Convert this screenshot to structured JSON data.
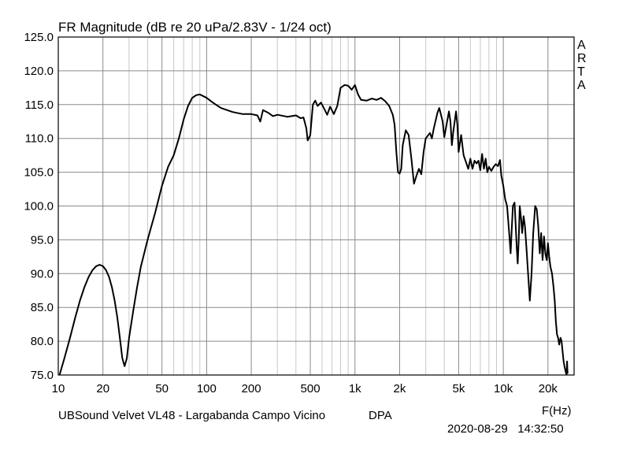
{
  "chart_data": {
    "type": "line",
    "title": "FR Magnitude (dB re 20 uPa/2.83V - 1/24 oct)",
    "brand_letters": [
      "A",
      "R",
      "T",
      "A"
    ],
    "xlabel": "F(Hz)",
    "ylabel": "",
    "x_scale": "log",
    "xlim": [
      10,
      30000
    ],
    "ylim": [
      75,
      125
    ],
    "grid": true,
    "x_ticks": [
      {
        "value": 10,
        "label": "10"
      },
      {
        "value": 20,
        "label": "20"
      },
      {
        "value": 50,
        "label": "50"
      },
      {
        "value": 100,
        "label": "100"
      },
      {
        "value": 200,
        "label": "200"
      },
      {
        "value": 500,
        "label": "500"
      },
      {
        "value": 1000,
        "label": "1k"
      },
      {
        "value": 2000,
        "label": "2k"
      },
      {
        "value": 5000,
        "label": "5k"
      },
      {
        "value": 10000,
        "label": "10k"
      },
      {
        "value": 20000,
        "label": "20k"
      }
    ],
    "y_ticks": [
      {
        "value": 125,
        "label": "125.0"
      },
      {
        "value": 120,
        "label": "120.0"
      },
      {
        "value": 115,
        "label": "115.0"
      },
      {
        "value": 110,
        "label": "110.0"
      },
      {
        "value": 105,
        "label": "105.0"
      },
      {
        "value": 100,
        "label": "100.0"
      },
      {
        "value": 95,
        "label": "95.0"
      },
      {
        "value": 90,
        "label": "90.0"
      },
      {
        "value": 85,
        "label": "85.0"
      },
      {
        "value": 80,
        "label": "80.0"
      },
      {
        "value": 75,
        "label": "75.0"
      }
    ],
    "series": [
      {
        "color": "#000000",
        "points": [
          [
            10.2,
            75.0
          ],
          [
            11,
            77.5
          ],
          [
            12,
            80.5
          ],
          [
            13,
            83.5
          ],
          [
            14,
            86.0
          ],
          [
            15,
            88.0
          ],
          [
            16,
            89.5
          ],
          [
            17,
            90.5
          ],
          [
            18,
            91.1
          ],
          [
            19,
            91.3
          ],
          [
            20,
            91.1
          ],
          [
            21,
            90.5
          ],
          [
            22,
            89.5
          ],
          [
            23,
            88.0
          ],
          [
            24,
            86.0
          ],
          [
            25,
            83.5
          ],
          [
            26,
            80.5
          ],
          [
            27,
            77.5
          ],
          [
            28,
            76.3
          ],
          [
            29,
            77.5
          ],
          [
            30,
            80.5
          ],
          [
            32,
            84.5
          ],
          [
            34,
            88.0
          ],
          [
            36,
            91.0
          ],
          [
            40,
            95.0
          ],
          [
            45,
            99.0
          ],
          [
            50,
            103.0
          ],
          [
            55,
            105.8
          ],
          [
            60,
            107.5
          ],
          [
            65,
            110.0
          ],
          [
            70,
            112.8
          ],
          [
            75,
            114.8
          ],
          [
            80,
            116.0
          ],
          [
            85,
            116.4
          ],
          [
            90,
            116.5
          ],
          [
            100,
            116.0
          ],
          [
            110,
            115.3
          ],
          [
            125,
            114.5
          ],
          [
            150,
            113.9
          ],
          [
            175,
            113.6
          ],
          [
            200,
            113.6
          ],
          [
            220,
            113.4
          ],
          [
            230,
            112.5
          ],
          [
            240,
            114.2
          ],
          [
            260,
            113.8
          ],
          [
            280,
            113.3
          ],
          [
            300,
            113.5
          ],
          [
            350,
            113.2
          ],
          [
            400,
            113.4
          ],
          [
            430,
            113.0
          ],
          [
            450,
            113.1
          ],
          [
            470,
            111.5
          ],
          [
            480,
            109.7
          ],
          [
            500,
            110.5
          ],
          [
            520,
            115.0
          ],
          [
            540,
            115.6
          ],
          [
            560,
            114.8
          ],
          [
            590,
            115.3
          ],
          [
            620,
            114.4
          ],
          [
            650,
            113.5
          ],
          [
            680,
            114.7
          ],
          [
            720,
            113.6
          ],
          [
            760,
            114.8
          ],
          [
            800,
            117.5
          ],
          [
            850,
            117.9
          ],
          [
            900,
            117.8
          ],
          [
            950,
            117.2
          ],
          [
            1000,
            117.9
          ],
          [
            1050,
            116.5
          ],
          [
            1100,
            115.7
          ],
          [
            1200,
            115.6
          ],
          [
            1300,
            115.9
          ],
          [
            1400,
            115.7
          ],
          [
            1500,
            116.0
          ],
          [
            1600,
            115.5
          ],
          [
            1700,
            114.8
          ],
          [
            1800,
            113.5
          ],
          [
            1850,
            112.0
          ],
          [
            1900,
            108.0
          ],
          [
            1950,
            105.0
          ],
          [
            2000,
            104.8
          ],
          [
            2050,
            105.5
          ],
          [
            2100,
            109.0
          ],
          [
            2200,
            111.2
          ],
          [
            2300,
            110.5
          ],
          [
            2400,
            107.0
          ],
          [
            2500,
            103.3
          ],
          [
            2600,
            104.5
          ],
          [
            2700,
            105.5
          ],
          [
            2800,
            104.7
          ],
          [
            2900,
            108.0
          ],
          [
            3000,
            110.0
          ],
          [
            3200,
            110.8
          ],
          [
            3300,
            110.0
          ],
          [
            3400,
            111.5
          ],
          [
            3600,
            113.8
          ],
          [
            3700,
            114.5
          ],
          [
            3800,
            113.5
          ],
          [
            3900,
            112.5
          ],
          [
            4000,
            110.2
          ],
          [
            4100,
            111.5
          ],
          [
            4300,
            114.0
          ],
          [
            4400,
            112.5
          ],
          [
            4500,
            109.0
          ],
          [
            4600,
            111.0
          ],
          [
            4800,
            114.0
          ],
          [
            4900,
            112.0
          ],
          [
            5000,
            108.0
          ],
          [
            5200,
            110.5
          ],
          [
            5400,
            107.5
          ],
          [
            5600,
            106.5
          ],
          [
            5800,
            105.5
          ],
          [
            6000,
            107.0
          ],
          [
            6200,
            105.5
          ],
          [
            6400,
            106.7
          ],
          [
            6600,
            106.3
          ],
          [
            6800,
            106.7
          ],
          [
            7000,
            105.3
          ],
          [
            7200,
            107.7
          ],
          [
            7400,
            105.5
          ],
          [
            7600,
            107.0
          ],
          [
            7800,
            105.0
          ],
          [
            8000,
            105.8
          ],
          [
            8300,
            105.2
          ],
          [
            8600,
            105.8
          ],
          [
            8900,
            106.2
          ],
          [
            9200,
            105.9
          ],
          [
            9500,
            106.8
          ],
          [
            9700,
            104.5
          ],
          [
            10000,
            103.0
          ],
          [
            10300,
            101.0
          ],
          [
            10600,
            100.0
          ],
          [
            11000,
            95.5
          ],
          [
            11200,
            93.0
          ],
          [
            11400,
            96.5
          ],
          [
            11600,
            100.0
          ],
          [
            11900,
            100.5
          ],
          [
            12100,
            97.5
          ],
          [
            12300,
            94.0
          ],
          [
            12500,
            91.5
          ],
          [
            12700,
            95.0
          ],
          [
            12900,
            100.0
          ],
          [
            13200,
            98.0
          ],
          [
            13400,
            96.0
          ],
          [
            13700,
            98.5
          ],
          [
            14000,
            97.0
          ],
          [
            14300,
            94.0
          ],
          [
            14700,
            90.0
          ],
          [
            15100,
            86.0
          ],
          [
            15500,
            90.0
          ],
          [
            15900,
            96.0
          ],
          [
            16400,
            100.0
          ],
          [
            16800,
            99.5
          ],
          [
            17200,
            97.0
          ],
          [
            17600,
            93.0
          ],
          [
            18000,
            96.0
          ],
          [
            18400,
            92.0
          ],
          [
            18800,
            95.5
          ],
          [
            19200,
            93.0
          ],
          [
            19600,
            92.0
          ],
          [
            20000,
            94.5
          ],
          [
            20400,
            92.5
          ],
          [
            20800,
            91.0
          ],
          [
            21300,
            90.0
          ],
          [
            21800,
            88.0
          ],
          [
            22200,
            86.0
          ],
          [
            22600,
            83.0
          ],
          [
            23000,
            81.0
          ],
          [
            23400,
            80.5
          ],
          [
            23800,
            79.5
          ],
          [
            24300,
            80.5
          ],
          [
            24700,
            80.0
          ],
          [
            25100,
            78.5
          ],
          [
            25500,
            77.0
          ],
          [
            26000,
            76.0
          ],
          [
            26500,
            75.2
          ],
          [
            26700,
            75.1
          ],
          [
            26900,
            77.0
          ],
          [
            27100,
            75.2
          ]
        ]
      }
    ],
    "annotations": {
      "caption_left": "UBSound Velvet VL48 - Largabanda Campo Vicino",
      "caption_mid": "DPA",
      "timestamp": "2020-08-29   14:32:50"
    }
  }
}
